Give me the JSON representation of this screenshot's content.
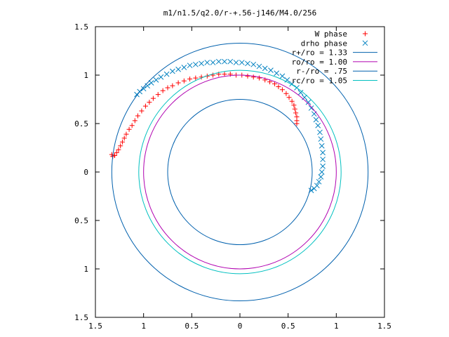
{
  "chart_data": {
    "type": "scatter",
    "title": "m1/n1.5/q2.0/r-+.56-j146/M4.0/256",
    "xlabel": "",
    "ylabel": "",
    "xlim": [
      -1.5,
      1.5
    ],
    "ylim": [
      -1.5,
      1.5
    ],
    "x_ticks": [
      -1.5,
      -1,
      -0.5,
      0,
      0.5,
      1,
      1.5
    ],
    "x_tick_labels": [
      "1.5",
      "1",
      "0.5",
      "0",
      "0.5",
      "1",
      "1.5"
    ],
    "y_ticks": [
      1.5,
      1,
      0.5,
      0,
      -0.5,
      -1,
      -1.5
    ],
    "y_tick_labels": [
      "1.5",
      "1",
      "0.5",
      "0",
      "0.5",
      "1",
      "1.5"
    ],
    "grid": false,
    "legend_position": "top-right",
    "series": [
      {
        "name": "W phase",
        "kind": "points",
        "marker": "+",
        "color": "#ff0000",
        "points": [
          [
            -1.33,
            0.18
          ],
          [
            -1.32,
            0.16
          ],
          [
            -1.3,
            0.17
          ],
          [
            -1.28,
            0.2
          ],
          [
            -1.26,
            0.23
          ],
          [
            -1.24,
            0.27
          ],
          [
            -1.22,
            0.31
          ],
          [
            -1.2,
            0.35
          ],
          [
            -1.18,
            0.39
          ],
          [
            -1.15,
            0.44
          ],
          [
            -1.12,
            0.48
          ],
          [
            -1.09,
            0.53
          ],
          [
            -1.06,
            0.58
          ],
          [
            -1.02,
            0.63
          ],
          [
            -0.98,
            0.68
          ],
          [
            -0.94,
            0.72
          ],
          [
            -0.9,
            0.76
          ],
          [
            -0.85,
            0.8
          ],
          [
            -0.8,
            0.84
          ],
          [
            -0.75,
            0.87
          ],
          [
            -0.7,
            0.89
          ],
          [
            -0.64,
            0.92
          ],
          [
            -0.58,
            0.94
          ],
          [
            -0.52,
            0.96
          ],
          [
            -0.46,
            0.97
          ],
          [
            -0.4,
            0.98
          ],
          [
            -0.34,
            0.99
          ],
          [
            -0.28,
            1.0
          ],
          [
            -0.22,
            1.01
          ],
          [
            -0.16,
            1.01
          ],
          [
            -0.1,
            1.01
          ],
          [
            -0.04,
            1.0
          ],
          [
            0.02,
            1.0
          ],
          [
            0.08,
            0.99
          ],
          [
            0.14,
            0.98
          ],
          [
            0.2,
            0.97
          ],
          [
            0.26,
            0.95
          ],
          [
            0.31,
            0.93
          ],
          [
            0.36,
            0.91
          ],
          [
            0.4,
            0.88
          ],
          [
            0.44,
            0.85
          ],
          [
            0.48,
            0.81
          ],
          [
            0.51,
            0.77
          ],
          [
            0.54,
            0.73
          ],
          [
            0.56,
            0.69
          ],
          [
            0.57,
            0.65
          ],
          [
            0.58,
            0.61
          ],
          [
            0.59,
            0.57
          ],
          [
            0.59,
            0.53
          ],
          [
            0.59,
            0.5
          ]
        ]
      },
      {
        "name": "drho phase",
        "kind": "points",
        "marker": "x",
        "color": "#0080c0",
        "points": [
          [
            -1.07,
            0.8
          ],
          [
            -1.04,
            0.83
          ],
          [
            -1.0,
            0.86
          ],
          [
            -0.96,
            0.89
          ],
          [
            -0.92,
            0.92
          ],
          [
            -0.87,
            0.95
          ],
          [
            -0.82,
            0.98
          ],
          [
            -0.76,
            1.01
          ],
          [
            -0.7,
            1.04
          ],
          [
            -0.64,
            1.06
          ],
          [
            -0.58,
            1.08
          ],
          [
            -0.52,
            1.1
          ],
          [
            -0.46,
            1.11
          ],
          [
            -0.4,
            1.12
          ],
          [
            -0.34,
            1.13
          ],
          [
            -0.28,
            1.13
          ],
          [
            -0.22,
            1.14
          ],
          [
            -0.16,
            1.14
          ],
          [
            -0.1,
            1.14
          ],
          [
            -0.04,
            1.13
          ],
          [
            0.02,
            1.13
          ],
          [
            0.08,
            1.12
          ],
          [
            0.14,
            1.11
          ],
          [
            0.2,
            1.09
          ],
          [
            0.26,
            1.07
          ],
          [
            0.32,
            1.05
          ],
          [
            0.38,
            1.02
          ],
          [
            0.44,
            0.99
          ],
          [
            0.49,
            0.95
          ],
          [
            0.54,
            0.91
          ],
          [
            0.59,
            0.87
          ],
          [
            0.63,
            0.82
          ],
          [
            0.67,
            0.77
          ],
          [
            0.71,
            0.72
          ],
          [
            0.74,
            0.66
          ],
          [
            0.77,
            0.6
          ],
          [
            0.79,
            0.54
          ],
          [
            0.81,
            0.48
          ],
          [
            0.83,
            0.41
          ],
          [
            0.84,
            0.34
          ],
          [
            0.85,
            0.27
          ],
          [
            0.86,
            0.2
          ],
          [
            0.86,
            0.13
          ],
          [
            0.86,
            0.06
          ],
          [
            0.85,
            0.0
          ],
          [
            0.84,
            -0.05
          ],
          [
            0.82,
            -0.1
          ],
          [
            0.8,
            -0.14
          ],
          [
            0.77,
            -0.17
          ],
          [
            0.74,
            -0.19
          ]
        ]
      },
      {
        "name": "r+/ro = 1.33",
        "kind": "circle",
        "radius": 1.33,
        "color": "#0060ad"
      },
      {
        "name": "ro/ro = 1.00",
        "kind": "circle",
        "radius": 1.0,
        "color": "#b000b0"
      },
      {
        "name": "r-/ro = .75",
        "kind": "circle",
        "radius": 0.75,
        "color": "#0060ad"
      },
      {
        "name": "rc/ro = 1.05",
        "kind": "circle",
        "radius": 1.05,
        "color": "#00c0c0"
      }
    ]
  }
}
